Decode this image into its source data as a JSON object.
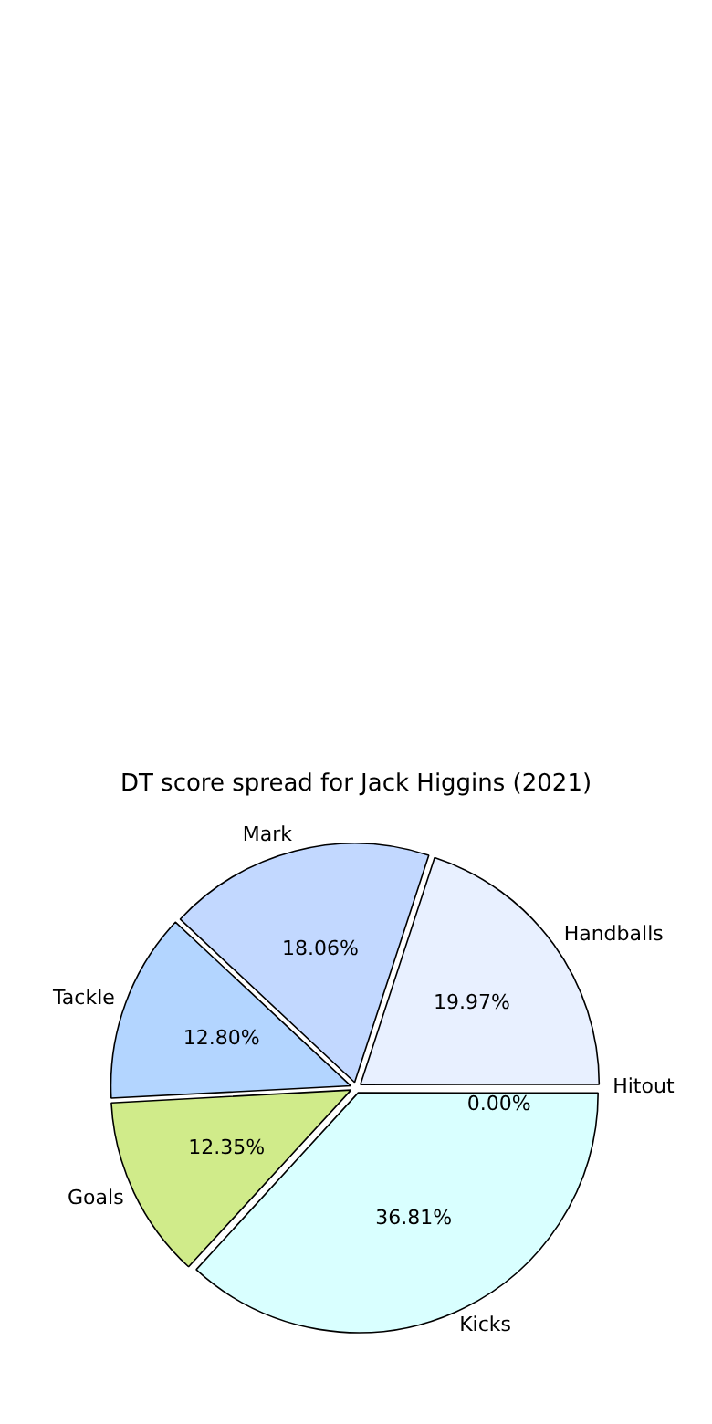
{
  "chart_data": {
    "type": "pie",
    "title": "DT score spread for Jack Higgins (2021)",
    "categories": [
      "Hitout",
      "Kicks",
      "Goals",
      "Tackle",
      "Mark",
      "Handballs"
    ],
    "values": [
      0.0,
      36.81,
      12.35,
      12.8,
      18.06,
      19.97
    ],
    "value_labels": [
      "0.00%",
      "36.81%",
      "12.35%",
      "12.80%",
      "18.06%",
      "19.97%"
    ],
    "colors": [
      "#000080",
      "#d9ffff",
      "#d0eb8a",
      "#b3d5ff",
      "#c2d8ff",
      "#e8f0ff"
    ]
  }
}
